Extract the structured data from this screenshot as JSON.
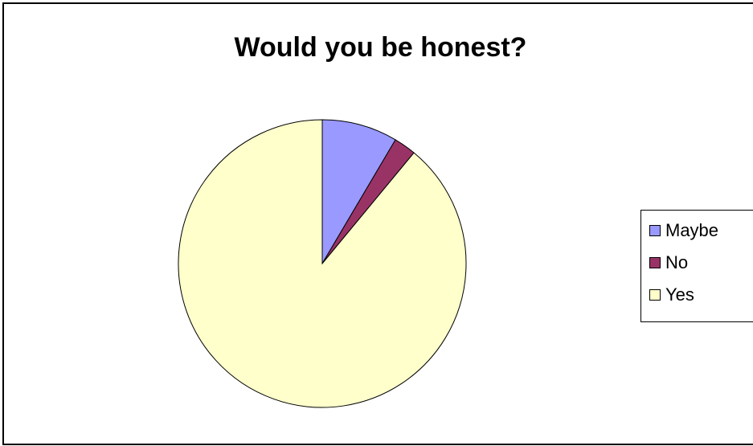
{
  "chart_data": {
    "type": "pie",
    "title": "Would you be honest?",
    "categories": [
      "Maybe",
      "No",
      "Yes"
    ],
    "values": [
      8.5,
      2.5,
      89.0
    ],
    "colors": [
      "#9999FF",
      "#993366",
      "#FFFFCC"
    ],
    "legend": "right"
  }
}
